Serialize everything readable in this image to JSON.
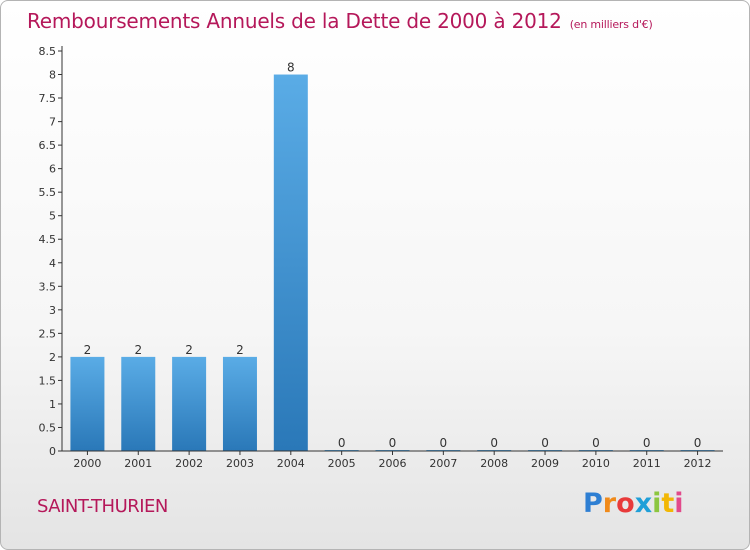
{
  "header": {
    "title": "Remboursements Annuels de la Dette de 2000 à 2012",
    "subtitle": "(en milliers d'€)"
  },
  "footer": {
    "commune": "SAINT-THURIEN",
    "brand": {
      "letters": [
        "P",
        "r",
        "o",
        "x",
        "i",
        "t",
        "i"
      ],
      "colors": [
        "#2e7fd3",
        "#f08a1a",
        "#e83a3a",
        "#1f9fd8",
        "#8cc63f",
        "#f2b705",
        "#e24a8b"
      ]
    }
  },
  "chart_data": {
    "type": "bar",
    "categories": [
      "2000",
      "2001",
      "2002",
      "2003",
      "2004",
      "2005",
      "2006",
      "2007",
      "2008",
      "2009",
      "2010",
      "2011",
      "2012"
    ],
    "values": [
      2,
      2,
      2,
      2,
      8,
      0,
      0,
      0,
      0,
      0,
      0,
      0,
      0
    ],
    "data_labels": [
      "2",
      "2",
      "2",
      "2",
      "8",
      "0",
      "0",
      "0",
      "0",
      "0",
      "0",
      "0",
      "0"
    ],
    "title": "Remboursements Annuels de la Dette de 2000 à 2012",
    "xlabel": "",
    "ylabel": "",
    "ylim": [
      0,
      8.5
    ],
    "yticks": [
      0,
      0.5,
      1,
      1.5,
      2,
      2.5,
      3,
      3.5,
      4,
      4.5,
      5,
      5.5,
      6,
      6.5,
      7,
      7.5,
      8,
      8.5
    ],
    "ytick_labels": [
      "0",
      "0.5",
      "1",
      "1.5",
      "2",
      "2.5",
      "3",
      "3.5",
      "4",
      "4.5",
      "5",
      "5.5",
      "6",
      "6.5",
      "7",
      "7.5",
      "8",
      "8.5"
    ],
    "grid": false,
    "legend": "none",
    "colors": {
      "bar_light": "#5aace6",
      "bar_dark": "#2a78b8",
      "axis": "#333333"
    }
  }
}
